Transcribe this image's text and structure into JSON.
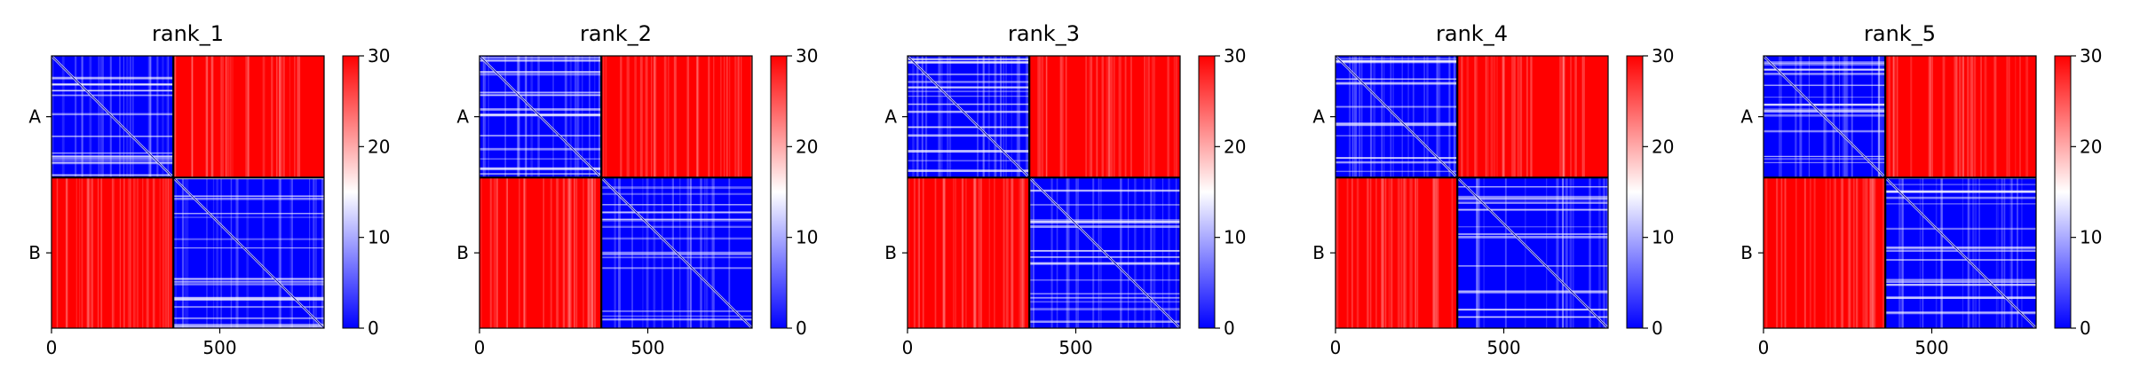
{
  "chart_data": [
    {
      "type": "heatmap",
      "title": "rank_1",
      "y_tick_labels": [
        "A",
        "B"
      ],
      "x_ticks": [
        0,
        500
      ],
      "x_range": [
        0,
        810
      ],
      "chain_boundary": 362,
      "colorbar": {
        "ticks": [
          0,
          10,
          20,
          30
        ],
        "range": [
          0,
          30
        ]
      },
      "blocks": [
        {
          "row": "A",
          "col": "A",
          "level": "low"
        },
        {
          "row": "A",
          "col": "B",
          "level": "high"
        },
        {
          "row": "B",
          "col": "A",
          "level": "high"
        },
        {
          "row": "B",
          "col": "B",
          "level": "low"
        }
      ]
    },
    {
      "type": "heatmap",
      "title": "rank_2",
      "y_tick_labels": [
        "A",
        "B"
      ],
      "x_ticks": [
        0,
        500
      ],
      "x_range": [
        0,
        810
      ],
      "chain_boundary": 362,
      "colorbar": {
        "ticks": [
          0,
          10,
          20,
          30
        ],
        "range": [
          0,
          30
        ]
      },
      "blocks": [
        {
          "row": "A",
          "col": "A",
          "level": "low"
        },
        {
          "row": "A",
          "col": "B",
          "level": "high"
        },
        {
          "row": "B",
          "col": "A",
          "level": "high"
        },
        {
          "row": "B",
          "col": "B",
          "level": "low"
        }
      ]
    },
    {
      "type": "heatmap",
      "title": "rank_3",
      "y_tick_labels": [
        "A",
        "B"
      ],
      "x_ticks": [
        0,
        500
      ],
      "x_range": [
        0,
        810
      ],
      "chain_boundary": 362,
      "colorbar": {
        "ticks": [
          0,
          10,
          20,
          30
        ],
        "range": [
          0,
          30
        ]
      },
      "blocks": [
        {
          "row": "A",
          "col": "A",
          "level": "low"
        },
        {
          "row": "A",
          "col": "B",
          "level": "high"
        },
        {
          "row": "B",
          "col": "A",
          "level": "high"
        },
        {
          "row": "B",
          "col": "B",
          "level": "low"
        }
      ]
    },
    {
      "type": "heatmap",
      "title": "rank_4",
      "y_tick_labels": [
        "A",
        "B"
      ],
      "x_ticks": [
        0,
        500
      ],
      "x_range": [
        0,
        810
      ],
      "chain_boundary": 362,
      "colorbar": {
        "ticks": [
          0,
          10,
          20,
          30
        ],
        "range": [
          0,
          30
        ]
      },
      "blocks": [
        {
          "row": "A",
          "col": "A",
          "level": "low"
        },
        {
          "row": "A",
          "col": "B",
          "level": "high"
        },
        {
          "row": "B",
          "col": "A",
          "level": "high"
        },
        {
          "row": "B",
          "col": "B",
          "level": "low"
        }
      ]
    },
    {
      "type": "heatmap",
      "title": "rank_5",
      "y_tick_labels": [
        "A",
        "B"
      ],
      "x_ticks": [
        0,
        500
      ],
      "x_range": [
        0,
        810
      ],
      "chain_boundary": 362,
      "colorbar": {
        "ticks": [
          0,
          10,
          20,
          30
        ],
        "range": [
          0,
          30
        ]
      },
      "blocks": [
        {
          "row": "A",
          "col": "A",
          "level": "low"
        },
        {
          "row": "A",
          "col": "B",
          "level": "high"
        },
        {
          "row": "B",
          "col": "A",
          "level": "high"
        },
        {
          "row": "B",
          "col": "B",
          "level": "low"
        }
      ]
    }
  ],
  "colors": {
    "high": "#ff0000",
    "mid": "#ffffff",
    "low": "#0000ff",
    "frame": "#000000"
  }
}
